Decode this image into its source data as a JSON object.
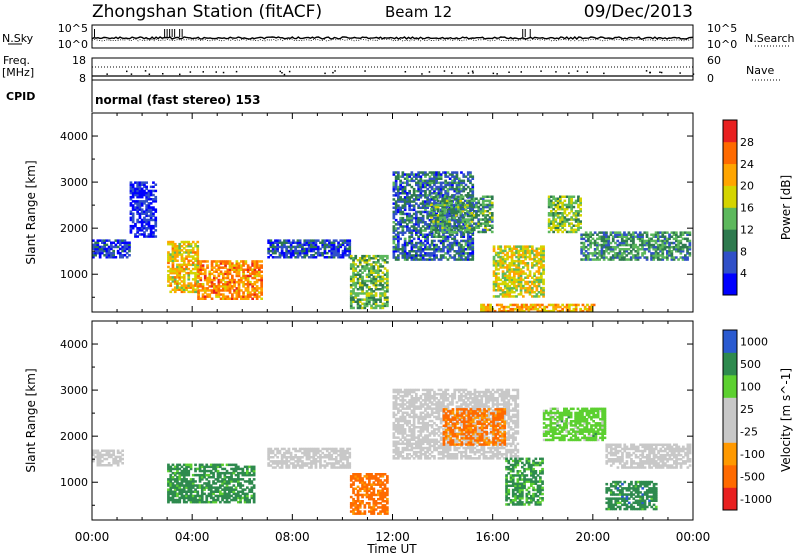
{
  "header": {
    "station": "Zhongshan Station (fitACF)",
    "beam": "Beam 12",
    "date": "09/Dec/2013",
    "cpid_label": "CPID",
    "cpid_value": "normal (fast stereo) 153"
  },
  "aux_panels": {
    "nsky": {
      "label": "N.Sky",
      "left_ticks": [
        "10^5",
        "10^0"
      ],
      "right_label": "N.Search",
      "right_ticks": [
        "10^5",
        "10^0"
      ]
    },
    "freq": {
      "label_line1": "Freq.",
      "label_line2": "[MHz]",
      "left_ticks": [
        "18",
        "8"
      ],
      "right_label": "Nave",
      "right_ticks": [
        "60",
        "0"
      ]
    }
  },
  "x_axis": {
    "label": "Time UT",
    "ticks": [
      "00:00",
      "04:00",
      "08:00",
      "12:00",
      "16:00",
      "20:00",
      "00:00"
    ]
  },
  "colors": {
    "power": [
      "#0000ff",
      "#3050c8",
      "#2e7a4e",
      "#5cb85c",
      "#d4d400",
      "#ffa500",
      "#ff6a00",
      "#e82020"
    ],
    "velocity": [
      "#e82020",
      "#ff6a00",
      "#ff9900",
      "#c8c8c8",
      "#c8c8c8",
      "#5cd030",
      "#2e8a4e",
      "#2a5ad0"
    ]
  },
  "chart_data": [
    {
      "type": "heatmap",
      "name": "power",
      "ylabel": "Slant Range [km]",
      "yticks": [
        "1000",
        "2000",
        "3000",
        "4000"
      ],
      "ylim": [
        180,
        4500
      ],
      "xlim": [
        0,
        24
      ],
      "colorbar_label": "Power [dB]",
      "colorbar_ticks": [
        "4",
        "8",
        "12",
        "16",
        "20",
        "24",
        "28"
      ],
      "crange": [
        0,
        32
      ],
      "regions": [
        {
          "t0": 0.0,
          "t1": 1.5,
          "r0": 1350,
          "r1": 1750,
          "level": 5
        },
        {
          "t0": 1.5,
          "t1": 2.5,
          "r0": 1800,
          "r1": 3000,
          "level": 3
        },
        {
          "t0": 3.0,
          "t1": 4.2,
          "r0": 600,
          "r1": 1700,
          "level": 20
        },
        {
          "t0": 4.2,
          "t1": 6.8,
          "r0": 450,
          "r1": 1300,
          "level": 24
        },
        {
          "t0": 7.0,
          "t1": 10.3,
          "r0": 1350,
          "r1": 1750,
          "level": 6
        },
        {
          "t0": 10.3,
          "t1": 11.8,
          "r0": 250,
          "r1": 1400,
          "level": 14
        },
        {
          "t0": 12.0,
          "t1": 15.2,
          "r0": 1300,
          "r1": 3200,
          "level": 8
        },
        {
          "t0": 13.5,
          "t1": 16.0,
          "r0": 1900,
          "r1": 2700,
          "level": 12
        },
        {
          "t0": 16.0,
          "t1": 18.0,
          "r0": 500,
          "r1": 1600,
          "level": 18
        },
        {
          "t0": 18.2,
          "t1": 19.5,
          "r0": 1900,
          "r1": 2700,
          "level": 15
        },
        {
          "t0": 19.5,
          "t1": 24.0,
          "r0": 1300,
          "r1": 1900,
          "level": 11
        },
        {
          "t0": 15.5,
          "t1": 20.0,
          "r0": 180,
          "r1": 350,
          "level": 22
        }
      ]
    },
    {
      "type": "heatmap",
      "name": "velocity",
      "ylabel": "Slant Range [km]",
      "yticks": [
        "1000",
        "2000",
        "3000",
        "4000"
      ],
      "ylim": [
        180,
        4500
      ],
      "xlim": [
        0,
        24
      ],
      "colorbar_label": "Velocity [m s^-1]",
      "colorbar_ticks": [
        "1000",
        "500",
        "100",
        "25",
        "-25",
        "-100",
        "-500",
        "-1000"
      ],
      "crange": [
        -1000,
        1000
      ],
      "regions": [
        {
          "t0": 0.0,
          "t1": 1.2,
          "r0": 1350,
          "r1": 1700,
          "level": 0
        },
        {
          "t0": 3.0,
          "t1": 6.5,
          "r0": 550,
          "r1": 1400,
          "level": 200
        },
        {
          "t0": 7.0,
          "t1": 10.3,
          "r0": 1300,
          "r1": 1750,
          "level": 0
        },
        {
          "t0": 10.3,
          "t1": 11.8,
          "r0": 300,
          "r1": 1200,
          "level": -200
        },
        {
          "t0": 12.0,
          "t1": 17.0,
          "r0": 1500,
          "r1": 3000,
          "level": 0
        },
        {
          "t0": 14.0,
          "t1": 16.5,
          "r0": 1800,
          "r1": 2600,
          "level": -150
        },
        {
          "t0": 16.5,
          "t1": 18.0,
          "r0": 500,
          "r1": 1500,
          "level": 150
        },
        {
          "t0": 18.0,
          "t1": 20.5,
          "r0": 1900,
          "r1": 2600,
          "level": 60
        },
        {
          "t0": 20.5,
          "t1": 24.0,
          "r0": 1300,
          "r1": 1800,
          "level": 0
        },
        {
          "t0": 20.5,
          "t1": 22.5,
          "r0": 400,
          "r1": 1000,
          "level": 300
        }
      ]
    }
  ]
}
